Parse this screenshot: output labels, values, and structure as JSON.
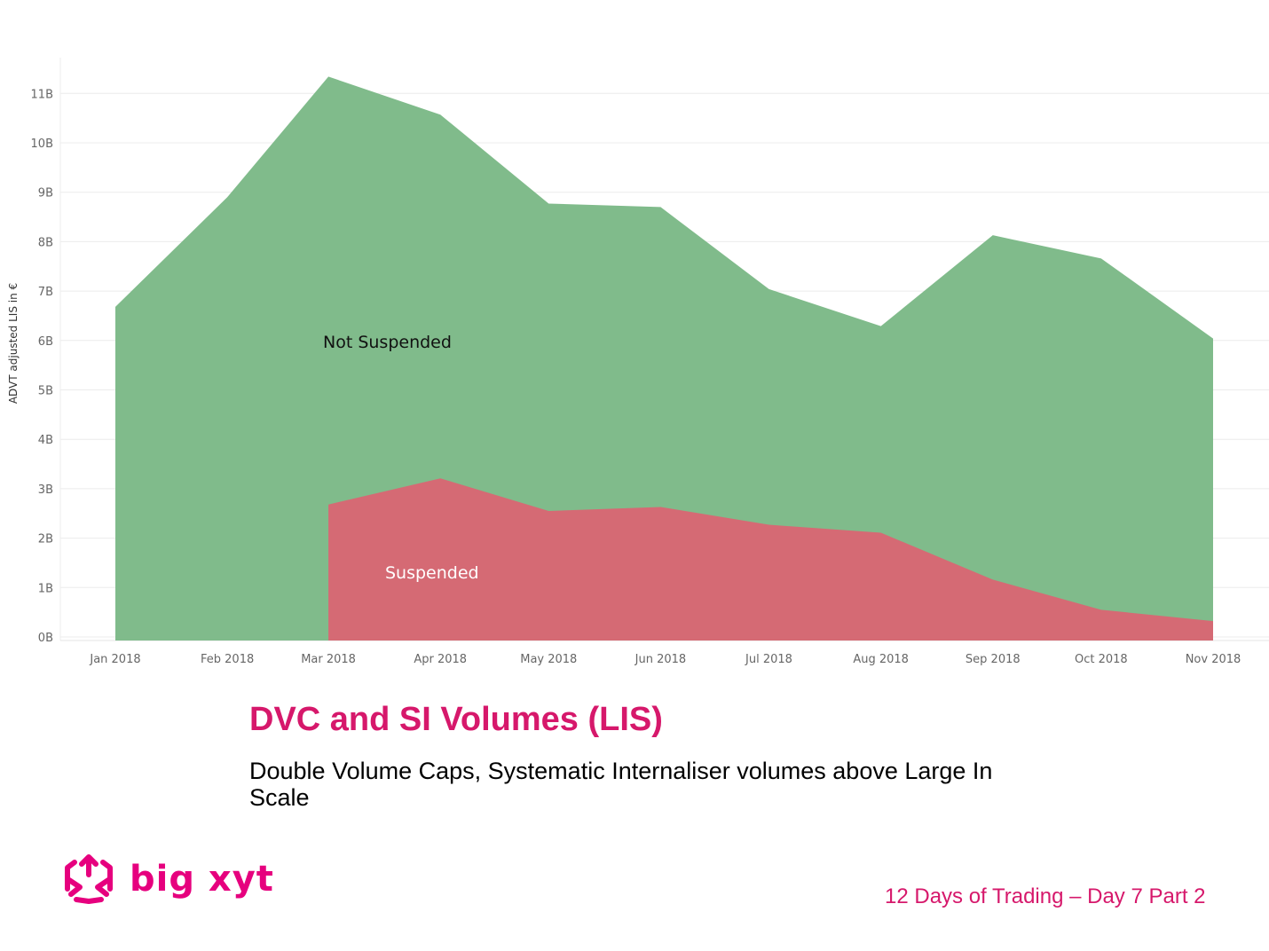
{
  "chart_data": {
    "type": "area",
    "stacked": true,
    "x": [
      "Jan 2018",
      "Feb 2018",
      "Mar 2018",
      "Apr 2018",
      "May 2018",
      "Jun 2018",
      "Jul 2018",
      "Aug 2018",
      "Sep 2018",
      "Oct 2018",
      "Nov 2018"
    ],
    "x_day_offset": [
      0,
      31,
      59,
      90,
      120,
      151,
      181,
      212,
      243,
      273,
      304
    ],
    "series": [
      {
        "name": "Suspended",
        "color": "#d56a74",
        "values": [
          null,
          null,
          2.68,
          3.21,
          2.55,
          2.63,
          2.27,
          2.11,
          1.16,
          0.55,
          0.32
        ]
      },
      {
        "name": "Not Suspended",
        "color": "#80bb8b",
        "values": [
          6.68,
          8.9,
          8.66,
          7.36,
          6.22,
          6.07,
          4.77,
          4.18,
          6.97,
          7.11,
          5.72
        ]
      }
    ],
    "totals": [
      6.68,
      8.9,
      11.34,
      10.57,
      8.77,
      8.7,
      7.04,
      6.29,
      8.13,
      7.66,
      6.04
    ],
    "ylabel": "ADVT adjusted LIS in €",
    "yticks": [
      "0B",
      "1B",
      "2B",
      "3B",
      "4B",
      "5B",
      "6B",
      "7B",
      "8B",
      "9B",
      "10B",
      "11B"
    ],
    "ylim": [
      0,
      11.5
    ],
    "unit": "B",
    "grid": true,
    "annotations": [
      {
        "text": "Not Suspended",
        "series": "Not Suspended"
      },
      {
        "text": "Suspended",
        "series": "Suspended"
      }
    ]
  },
  "title": "DVC and SI Volumes (LIS)",
  "subtitle": "Double Volume Caps, Systematic Internaliser volumes above Large In Scale",
  "footer": "12 Days of Trading – Day 7 Part 2",
  "logo": {
    "text": "big xyt",
    "color": "#e6007e"
  }
}
